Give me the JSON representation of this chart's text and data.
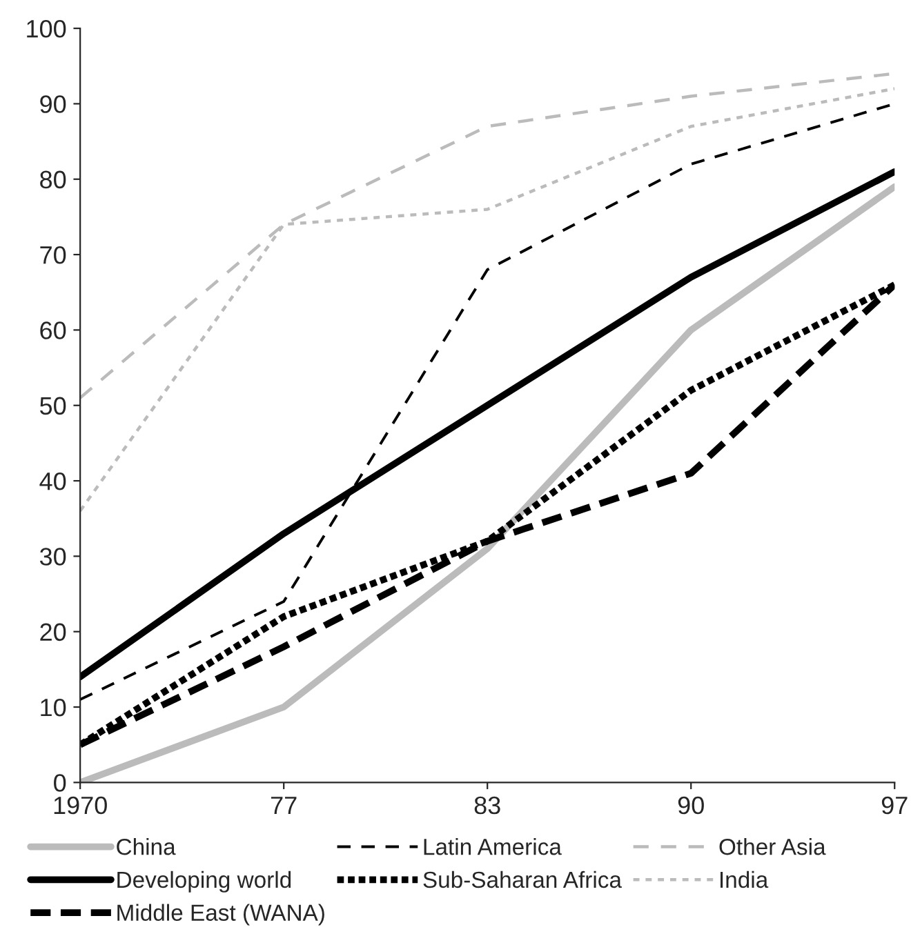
{
  "chart_data": {
    "type": "line",
    "categories": [
      "1970",
      "77",
      "83",
      "90",
      "97"
    ],
    "series": [
      {
        "name": "China",
        "color": "#bbbbbb",
        "line_style": "solid",
        "values": [
          0,
          10,
          31,
          60,
          79
        ]
      },
      {
        "name": "Developing world",
        "color": "#000000",
        "line_style": "solid",
        "values": [
          14,
          33,
          50,
          67,
          81
        ]
      },
      {
        "name": "Middle East (WANA)",
        "color": "#000000",
        "line_style": "dashed",
        "values": [
          5,
          18,
          32,
          41,
          66
        ]
      },
      {
        "name": "Latin America",
        "color": "#000000",
        "line_style": "dashed",
        "values": [
          11,
          24,
          68,
          82,
          90
        ]
      },
      {
        "name": "Sub-Saharan Africa",
        "color": "#000000",
        "line_style": "dotted",
        "values": [
          5,
          22,
          32,
          52,
          66
        ]
      },
      {
        "name": "Other Asia",
        "color": "#bbbbbb",
        "line_style": "dashed",
        "values": [
          51,
          74,
          87,
          91,
          94
        ]
      },
      {
        "name": "India",
        "color": "#bbbbbb",
        "line_style": "dotted",
        "values": [
          36,
          74,
          76,
          87,
          92
        ]
      }
    ],
    "ylim": [
      0,
      100
    ],
    "yticks": [
      0,
      10,
      20,
      30,
      40,
      50,
      60,
      70,
      80,
      90,
      100
    ],
    "grid": false,
    "legend": "bottom",
    "marker": "none"
  }
}
